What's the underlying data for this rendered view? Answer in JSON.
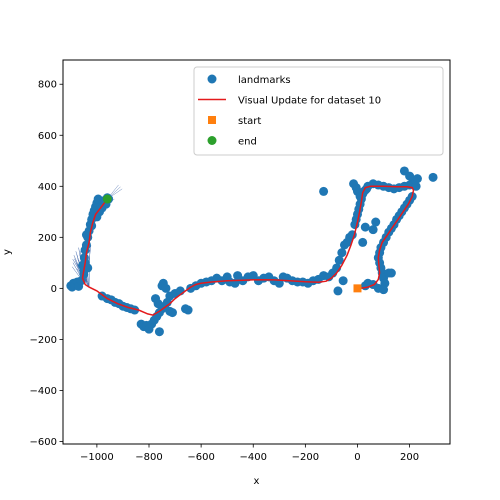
{
  "chart_data": {
    "type": "scatter",
    "title": "",
    "xlabel": "x",
    "ylabel": "y",
    "xlim": [
      -1130,
      355
    ],
    "ylim": [
      -610,
      895
    ],
    "xticks": [
      -1000,
      -800,
      -600,
      -400,
      -200,
      0,
      200
    ],
    "yticks": [
      -600,
      -400,
      -200,
      0,
      200,
      400,
      600,
      800
    ],
    "grid": false,
    "legend_position": "top-right",
    "colors": {
      "landmarks": "#1f77b4",
      "trajectory": "#e41a1c",
      "start": "#ff7f0e",
      "end": "#2ca02c",
      "heading": "#4a6fb0"
    },
    "series": [
      {
        "name": "landmarks",
        "kind": "scatter",
        "marker": "circle",
        "points": [
          [
            -1100,
            10
          ],
          [
            -1095,
            5
          ],
          [
            -1090,
            20
          ],
          [
            -1085,
            12
          ],
          [
            -1075,
            25
          ],
          [
            -1070,
            8
          ],
          [
            -1060,
            30
          ],
          [
            -1050,
            55
          ],
          [
            -1055,
            90
          ],
          [
            -1048,
            120
          ],
          [
            -1045,
            150
          ],
          [
            -1040,
            170
          ],
          [
            -1035,
            200
          ],
          [
            -1030,
            225
          ],
          [
            -1025,
            250
          ],
          [
            -1020,
            270
          ],
          [
            -1015,
            290
          ],
          [
            -1010,
            305
          ],
          [
            -1005,
            320
          ],
          [
            -1000,
            335
          ],
          [
            -995,
            350
          ],
          [
            -990,
            300
          ],
          [
            -985,
            320
          ],
          [
            -980,
            315
          ],
          [
            -975,
            340
          ],
          [
            -970,
            345
          ],
          [
            -965,
            330
          ],
          [
            -960,
            355
          ],
          [
            -955,
            350
          ],
          [
            -1040,
            210
          ],
          [
            -1020,
            245
          ],
          [
            -1000,
            280
          ],
          [
            -1045,
            100
          ],
          [
            -1050,
            70
          ],
          [
            -1035,
            80
          ],
          [
            -980,
            -30
          ],
          [
            -960,
            -40
          ],
          [
            -945,
            -45
          ],
          [
            -930,
            -55
          ],
          [
            -915,
            -60
          ],
          [
            -900,
            -70
          ],
          [
            -885,
            -75
          ],
          [
            -870,
            -80
          ],
          [
            -855,
            -85
          ],
          [
            -830,
            -140
          ],
          [
            -820,
            -150
          ],
          [
            -810,
            -145
          ],
          [
            -800,
            -160
          ],
          [
            -790,
            -140
          ],
          [
            -780,
            -125
          ],
          [
            -770,
            -110
          ],
          [
            -760,
            -95
          ],
          [
            -750,
            -80
          ],
          [
            -740,
            -70
          ],
          [
            -730,
            -55
          ],
          [
            -720,
            -90
          ],
          [
            -710,
            -95
          ],
          [
            -760,
            -170
          ],
          [
            -765,
            -60
          ],
          [
            -775,
            -40
          ],
          [
            -750,
            10
          ],
          [
            -745,
            20
          ],
          [
            -735,
            0
          ],
          [
            -720,
            -30
          ],
          [
            -700,
            -20
          ],
          [
            -680,
            -10
          ],
          [
            -660,
            -80
          ],
          [
            -650,
            -85
          ],
          [
            -640,
            0
          ],
          [
            -620,
            10
          ],
          [
            -600,
            20
          ],
          [
            -580,
            25
          ],
          [
            -560,
            30
          ],
          [
            -540,
            40
          ],
          [
            -520,
            30
          ],
          [
            -500,
            45
          ],
          [
            -490,
            25
          ],
          [
            -470,
            20
          ],
          [
            -460,
            50
          ],
          [
            -440,
            30
          ],
          [
            -420,
            45
          ],
          [
            -400,
            50
          ],
          [
            -380,
            30
          ],
          [
            -360,
            40
          ],
          [
            -340,
            45
          ],
          [
            -320,
            30
          ],
          [
            -300,
            20
          ],
          [
            -285,
            45
          ],
          [
            -270,
            40
          ],
          [
            -250,
            30
          ],
          [
            -230,
            25
          ],
          [
            -210,
            25
          ],
          [
            -190,
            20
          ],
          [
            -170,
            30
          ],
          [
            -150,
            35
          ],
          [
            -130,
            50
          ],
          [
            -110,
            45
          ],
          [
            -95,
            60
          ],
          [
            -80,
            80
          ],
          [
            -70,
            110
          ],
          [
            -60,
            140
          ],
          [
            -50,
            170
          ],
          [
            -40,
            180
          ],
          [
            -30,
            200
          ],
          [
            -20,
            210
          ],
          [
            -75,
            -10
          ],
          [
            -55,
            30
          ],
          [
            -10,
            250
          ],
          [
            -5,
            270
          ],
          [
            0,
            290
          ],
          [
            5,
            310
          ],
          [
            10,
            330
          ],
          [
            15,
            350
          ],
          [
            20,
            370
          ],
          [
            25,
            380
          ],
          [
            30,
            385
          ],
          [
            35,
            390
          ],
          [
            40,
            400
          ],
          [
            -15,
            410
          ],
          [
            -5,
            395
          ],
          [
            0,
            380
          ],
          [
            10,
            360
          ],
          [
            -130,
            380
          ],
          [
            60,
            410
          ],
          [
            80,
            405
          ],
          [
            100,
            400
          ],
          [
            120,
            395
          ],
          [
            140,
            390
          ],
          [
            160,
            395
          ],
          [
            180,
            400
          ],
          [
            200,
            405
          ],
          [
            210,
            410
          ],
          [
            220,
            425
          ],
          [
            230,
            430
          ],
          [
            200,
            440
          ],
          [
            180,
            460
          ],
          [
            290,
            435
          ],
          [
            225,
            400
          ],
          [
            210,
            360
          ],
          [
            200,
            345
          ],
          [
            190,
            330
          ],
          [
            180,
            315
          ],
          [
            170,
            300
          ],
          [
            160,
            285
          ],
          [
            150,
            270
          ],
          [
            140,
            250
          ],
          [
            130,
            235
          ],
          [
            120,
            220
          ],
          [
            110,
            200
          ],
          [
            100,
            180
          ],
          [
            90,
            160
          ],
          [
            85,
            140
          ],
          [
            80,
            120
          ],
          [
            85,
            100
          ],
          [
            90,
            80
          ],
          [
            95,
            60
          ],
          [
            100,
            40
          ],
          [
            105,
            20
          ],
          [
            120,
            60
          ],
          [
            130,
            60
          ],
          [
            30,
            240
          ],
          [
            60,
            230
          ],
          [
            70,
            260
          ],
          [
            20,
            180
          ],
          [
            40,
            20
          ],
          [
            60,
            15
          ],
          [
            80,
            0
          ],
          [
            100,
            -5
          ],
          [
            30,
            10
          ]
        ]
      },
      {
        "name": "Visual Update for dataset 10",
        "kind": "line",
        "points": [
          [
            -960,
            350
          ],
          [
            -975,
            330
          ],
          [
            -990,
            310
          ],
          [
            -1005,
            290
          ],
          [
            -1015,
            260
          ],
          [
            -1025,
            220
          ],
          [
            -1030,
            180
          ],
          [
            -1040,
            140
          ],
          [
            -1045,
            100
          ],
          [
            -1050,
            70
          ],
          [
            -1055,
            40
          ],
          [
            -1045,
            15
          ],
          [
            -1030,
            5
          ],
          [
            -1000,
            -10
          ],
          [
            -960,
            -40
          ],
          [
            -920,
            -60
          ],
          [
            -880,
            -75
          ],
          [
            -840,
            -85
          ],
          [
            -805,
            -100
          ],
          [
            -785,
            -105
          ],
          [
            -760,
            -90
          ],
          [
            -740,
            -75
          ],
          [
            -720,
            -60
          ],
          [
            -700,
            -40
          ],
          [
            -680,
            -25
          ],
          [
            -660,
            -10
          ],
          [
            -640,
            5
          ],
          [
            -620,
            15
          ],
          [
            -600,
            20
          ],
          [
            -560,
            25
          ],
          [
            -500,
            30
          ],
          [
            -440,
            32
          ],
          [
            -380,
            34
          ],
          [
            -320,
            33
          ],
          [
            -260,
            30
          ],
          [
            -200,
            26
          ],
          [
            -150,
            24
          ],
          [
            -120,
            28
          ],
          [
            -100,
            40
          ],
          [
            -80,
            60
          ],
          [
            -60,
            90
          ],
          [
            -40,
            130
          ],
          [
            -25,
            170
          ],
          [
            -12,
            210
          ],
          [
            0,
            260
          ],
          [
            8,
            300
          ],
          [
            15,
            340
          ],
          [
            20,
            375
          ],
          [
            30,
            395
          ],
          [
            50,
            400
          ],
          [
            100,
            400
          ],
          [
            150,
            398
          ],
          [
            190,
            398
          ],
          [
            210,
            395
          ],
          [
            215,
            385
          ],
          [
            210,
            360
          ],
          [
            195,
            330
          ],
          [
            175,
            300
          ],
          [
            155,
            270
          ],
          [
            135,
            240
          ],
          [
            115,
            210
          ],
          [
            95,
            180
          ],
          [
            85,
            150
          ],
          [
            80,
            120
          ],
          [
            82,
            90
          ],
          [
            85,
            60
          ],
          [
            80,
            35
          ],
          [
            65,
            15
          ],
          [
            40,
            5
          ],
          [
            10,
            0
          ],
          [
            0,
            0
          ]
        ]
      },
      {
        "name": "start",
        "kind": "scatter",
        "marker": "square",
        "points": [
          [
            0,
            0
          ]
        ]
      },
      {
        "name": "end",
        "kind": "scatter",
        "marker": "circle",
        "points": [
          [
            -960,
            350
          ]
        ]
      }
    ],
    "legend": [
      {
        "label": "landmarks",
        "marker": "circle",
        "color": "#1f77b4"
      },
      {
        "label": "Visual Update for dataset 10",
        "marker": "line",
        "color": "#e41a1c"
      },
      {
        "label": "start",
        "marker": "square",
        "color": "#ff7f0e"
      },
      {
        "label": "end",
        "marker": "circle",
        "color": "#2ca02c"
      }
    ]
  }
}
